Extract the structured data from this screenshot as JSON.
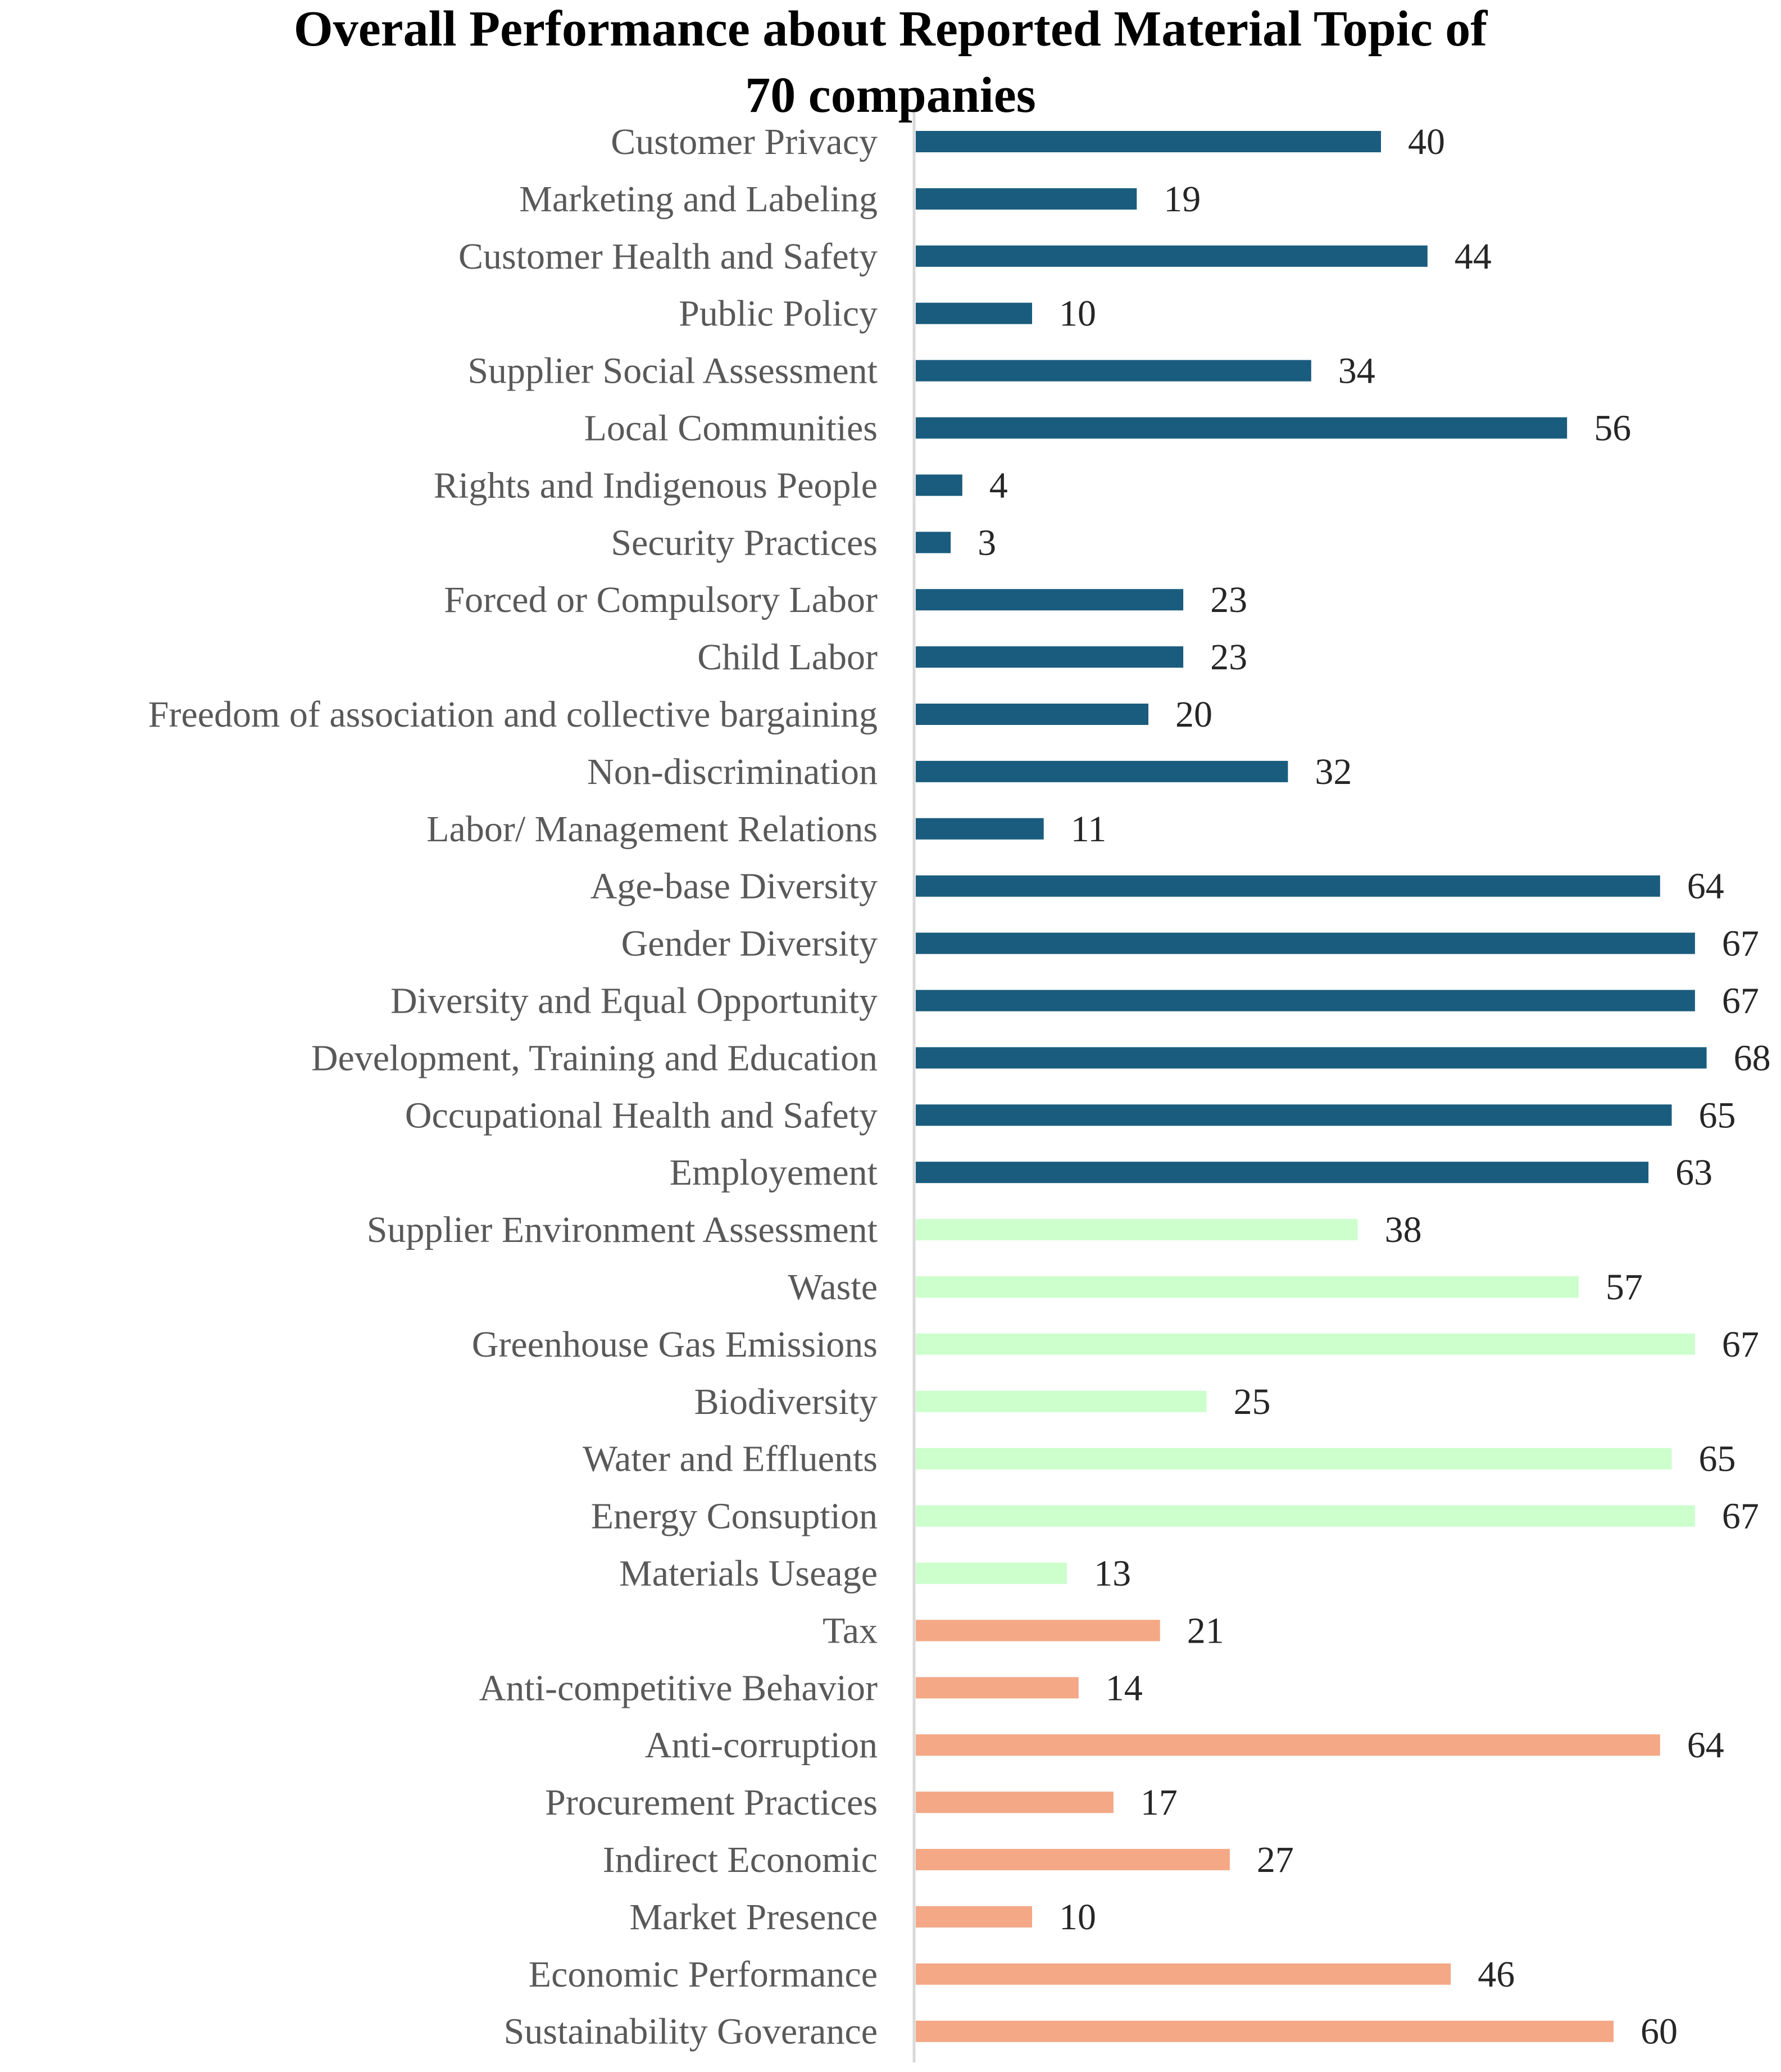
{
  "title": {
    "line1": "Overall Performance about Reported Material Topic of",
    "line2": "70 companies"
  },
  "colors": {
    "social": "#1a5c7e",
    "environmental": "#ccffcc",
    "economic": "#f4a886",
    "label": "#595959",
    "value": "#262626",
    "axis": "#d9d9d9"
  },
  "chart_data": {
    "type": "bar",
    "orientation": "horizontal",
    "title": "Overall Performance about Reported Material Topic of 70 companies",
    "xlabel": "",
    "ylabel": "",
    "xlim": [
      0,
      70
    ],
    "grid": false,
    "legend": "none",
    "categories": [
      "Customer Privacy",
      "Marketing and Labeling",
      "Customer Health and Safety",
      "Public Policy",
      "Supplier Social Assessment",
      "Local Communities",
      "Rights and Indigenous People",
      "Security Practices",
      "Forced or Compulsory Labor",
      "Child Labor",
      "Freedom of association and collective bargaining",
      "Non-discrimination",
      "Labor/ Management Relations",
      "Age-base Diversity",
      "Gender Diversity",
      "Diversity and Equal Opportunity",
      "Development, Training and Education",
      "Occupational Health and Safety",
      "Employement",
      "Supplier Environment Assessment",
      "Waste",
      "Greenhouse Gas Emissions",
      "Biodiversity",
      "Water and Effluents",
      "Energy Consuption",
      "Materials Useage",
      "Tax",
      "Anti-competitive Behavior",
      "Anti-corruption",
      "Procurement Practices",
      "Indirect Economic",
      "Market Presence",
      "Economic Performance",
      "Sustainability Goverance"
    ],
    "values": [
      40,
      19,
      44,
      10,
      34,
      56,
      4,
      3,
      23,
      23,
      20,
      32,
      11,
      64,
      67,
      67,
      68,
      65,
      63,
      38,
      57,
      67,
      25,
      65,
      67,
      13,
      21,
      14,
      64,
      17,
      27,
      10,
      46,
      60
    ],
    "groups": [
      "social",
      "social",
      "social",
      "social",
      "social",
      "social",
      "social",
      "social",
      "social",
      "social",
      "social",
      "social",
      "social",
      "social",
      "social",
      "social",
      "social",
      "social",
      "social",
      "environmental",
      "environmental",
      "environmental",
      "environmental",
      "environmental",
      "environmental",
      "environmental",
      "economic",
      "economic",
      "economic",
      "economic",
      "economic",
      "economic",
      "economic",
      "economic"
    ]
  }
}
